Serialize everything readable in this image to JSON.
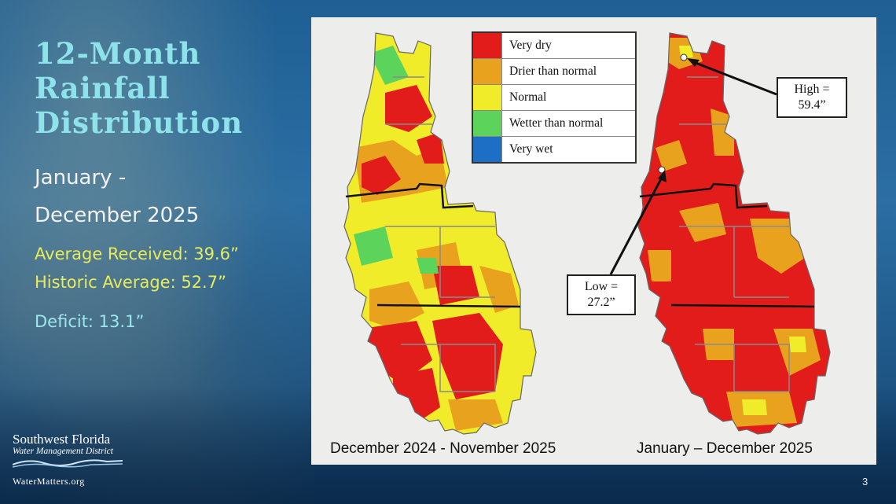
{
  "slide": {
    "title_lines": [
      "12-Month",
      "Rainfall",
      "Distribution"
    ],
    "period_lines": [
      "January  -",
      "December 2025"
    ],
    "average_received": "Average Received: 39.6”",
    "historic_average": "Historic Average: 52.7”",
    "deficit": "Deficit: 13.1”",
    "slide_number": "3"
  },
  "logo": {
    "line1": "Southwest Florida",
    "line2": "Water Management District",
    "url": "WaterMatters.org"
  },
  "legend": {
    "items": [
      {
        "label": "Very dry",
        "color": "#e21b1b"
      },
      {
        "label": "Drier than normal",
        "color": "#e8a21e"
      },
      {
        "label": "Normal",
        "color": "#f0ec2a"
      },
      {
        "label": "Wetter than normal",
        "color": "#5cd35a"
      },
      {
        "label": "Very wet",
        "color": "#1c6fc4"
      }
    ]
  },
  "maps": {
    "left_caption": "December 2024 - November 2025",
    "right_caption": "January – December 2025"
  },
  "callouts": {
    "high_lines": [
      "High =",
      "59.4”"
    ],
    "low_lines": [
      "Low =",
      "27.2”"
    ]
  }
}
